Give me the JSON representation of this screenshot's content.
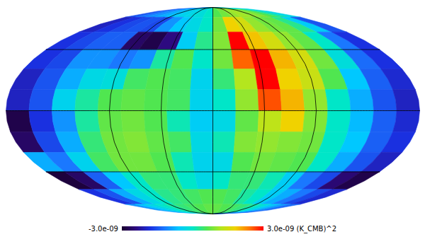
{
  "chart_data": {
    "type": "heatmap",
    "grid": true,
    "tick_labels": false,
    "xlim": [
      180,
      -180
    ],
    "ylim": [
      -90,
      90
    ],
    "xticks": [
      -90,
      -45,
      0,
      45,
      90
    ],
    "yticks": [
      -45,
      0,
      45
    ],
    "lon": [
      170,
      150,
      130,
      110,
      90,
      70,
      50,
      30,
      10,
      -10,
      -30,
      -50,
      -70,
      -90,
      -110,
      -130,
      -150,
      -170
    ],
    "lat": [
      82.5,
      67.5,
      52.5,
      37.5,
      22.5,
      7.5,
      -7.5,
      -22.5,
      -37.5,
      -52.5,
      -67.5,
      -82.5
    ],
    "values": [
      [
        -1.5e-09,
        -1.2e-09,
        -1e-09,
        -8e-10,
        -6e-10,
        -4e-10,
        -3e-10,
        -2e-10,
        0.0,
        6e-10,
        8e-10,
        1e-09,
        1.1e-09,
        1e-09,
        9e-10,
        6e-10,
        2e-10,
        -3e-10
      ],
      [
        -2e-09,
        -1.8e-09,
        -1.6e-09,
        -1.5e-09,
        -1.6e-09,
        -1e-09,
        -6e-10,
        -3e-10,
        0.0,
        8e-10,
        1.8e-09,
        1.5e-09,
        1e-09,
        8e-10,
        7e-10,
        3e-10,
        -5e-10,
        -1.5e-09
      ],
      [
        -1.8e-09,
        -1.6e-09,
        -1.4e-09,
        -1.4e-09,
        -2.6e-09,
        -2.8e-09,
        -2.4e-09,
        -5e-10,
        3e-10,
        9e-10,
        3e-09,
        1.9e-09,
        1.5e-09,
        1e-09,
        7e-10,
        0.0,
        -1.2e-09,
        -1.8e-09
      ],
      [
        -1.8e-09,
        -1.6e-09,
        -1e-09,
        -1e-09,
        -1.2e-09,
        -1e-09,
        2e-10,
        6e-10,
        0.0,
        8e-10,
        2.5e-09,
        3e-09,
        2e-09,
        1.5e-09,
        8e-10,
        -2e-10,
        -1.3e-09,
        -1.8e-09
      ],
      [
        -2e-09,
        -1.5e-09,
        -8e-10,
        -3e-10,
        -2e-10,
        5e-10,
        6e-10,
        5e-10,
        -4e-10,
        4e-10,
        1.2e-09,
        3e-09,
        1.8e-09,
        1.4e-09,
        6e-10,
        -6e-10,
        -1.4e-09,
        -1.9e-09
      ],
      [
        -2e-09,
        -1.5e-09,
        -4e-10,
        2e-10,
        6e-10,
        7e-10,
        6e-10,
        5e-10,
        -4e-10,
        0.0,
        1e-09,
        2.6e-09,
        2e-09,
        1e-09,
        0.0,
        -8e-10,
        -1.5e-09,
        -2e-09
      ],
      [
        -2.8e-09,
        -1.8e-09,
        -1e-09,
        2e-10,
        7e-10,
        8e-10,
        6e-10,
        1e-10,
        -5e-10,
        -3e-10,
        7e-10,
        1.3e-09,
        1.8e-09,
        9e-10,
        0.0,
        -7e-10,
        -1.4e-09,
        -1.9e-09
      ],
      [
        -2.6e-09,
        -1.6e-09,
        -8e-10,
        4e-10,
        8e-10,
        9e-10,
        7e-10,
        5e-10,
        -3e-10,
        1e-10,
        9e-10,
        1e-09,
        9e-10,
        8e-10,
        0.0,
        -6e-10,
        -1.4e-09,
        -1.8e-09
      ],
      [
        -8e-10,
        -1.2e-09,
        -4e-10,
        5e-10,
        8e-10,
        8e-10,
        6e-10,
        1e-10,
        -4e-10,
        -3e-10,
        6e-10,
        8e-10,
        7e-10,
        6e-10,
        0.0,
        -8e-10,
        -1.5e-09,
        -2e-09
      ],
      [
        -2.9e-09,
        -2.6e-09,
        -1.4e-09,
        -6e-10,
        0.0,
        4e-10,
        4e-10,
        0.0,
        -3e-10,
        0.0,
        4e-10,
        4e-10,
        1e-10,
        -5e-10,
        -1.2e-09,
        -1.6e-09,
        -2.5e-09,
        -2.8e-09
      ],
      [
        -1.8e-09,
        -1.5e-09,
        -8e-10,
        -3e-10,
        0.0,
        3e-10,
        4e-10,
        5e-10,
        6e-10,
        6e-10,
        5e-10,
        2e-10,
        0.0,
        -5e-10,
        -8e-10,
        -1.2e-09,
        -1.6e-09,
        -1.9e-09
      ],
      [
        -1e-09,
        -6e-10,
        -3e-10,
        0.0,
        2e-10,
        4e-10,
        5e-10,
        6e-10,
        7e-10,
        7e-10,
        6e-10,
        5e-10,
        4e-10,
        2e-10,
        -1e-10,
        -5e-10,
        -9e-10,
        -1.3e-09
      ]
    ],
    "colorbar": {
      "range": [
        -3e-09,
        3e-09
      ],
      "ticks": [
        {
          "value": -3e-09,
          "label": "-3.0e-09"
        },
        {
          "value": 3e-09,
          "label": "3.0e-09"
        }
      ],
      "label": "(K_CMB)^2"
    }
  }
}
